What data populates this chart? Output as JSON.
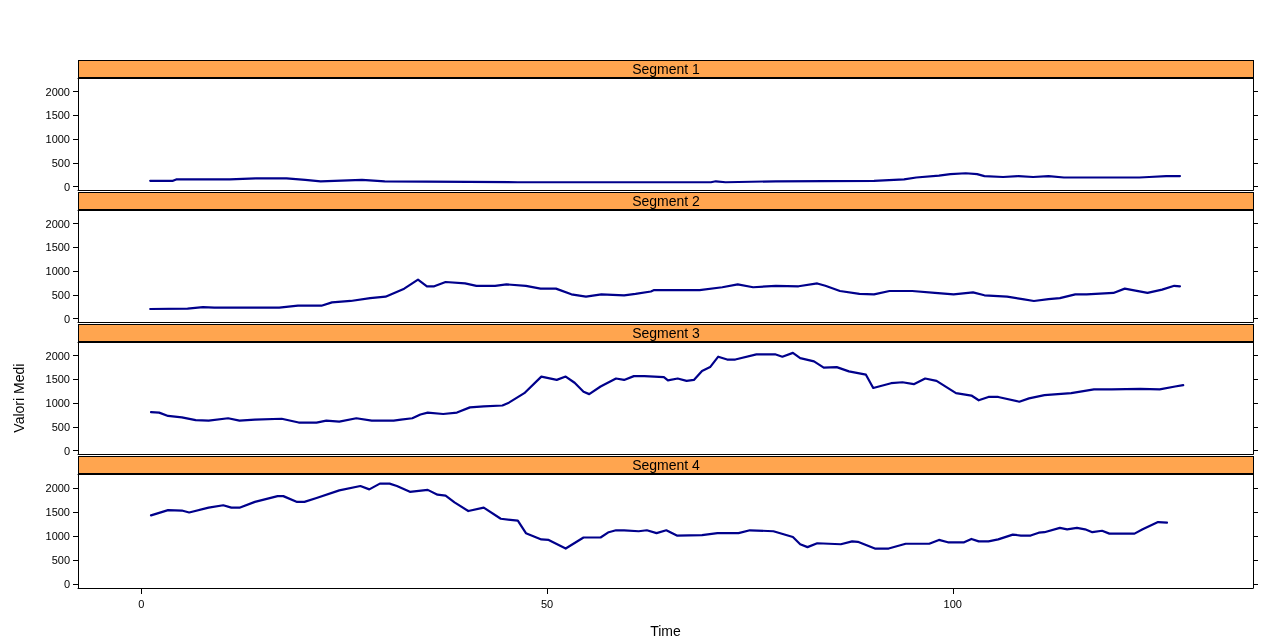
{
  "chart_data": [
    {
      "type": "line",
      "title": "Segment 1",
      "tick_labels": "y",
      "xlim": [
        -7.8,
        137
      ],
      "xticks": [
        0,
        50,
        100
      ],
      "ylim": [
        -80,
        2290
      ],
      "yticks": [
        0,
        500,
        1000,
        1500,
        2000
      ],
      "grid": false,
      "marker": "none",
      "line_style": "solid",
      "series": [
        {
          "color": "#00008b",
          "x": [
            1.1,
            3.9,
            4.3,
            8.1,
            10.9,
            14.1,
            17.9,
            20.2,
            22.1,
            27.2,
            30,
            46.4,
            70.2,
            70.8,
            72,
            78.2,
            90.3,
            94,
            95.5,
            98.3,
            99.7,
            101.6,
            103,
            103.9,
            106.2,
            108.1,
            109.9,
            111.8,
            113.7,
            123,
            124.2,
            126.3,
            128
          ],
          "values": [
            120,
            120,
            150,
            150,
            150,
            170,
            170,
            140,
            110,
            140,
            110,
            90,
            90,
            110,
            90,
            110,
            120,
            150,
            190,
            230,
            260,
            280,
            260,
            220,
            200,
            220,
            200,
            220,
            190,
            190,
            200,
            220,
            220
          ]
        }
      ]
    },
    {
      "type": "line",
      "title": "Segment 2",
      "tick_labels": "y",
      "xlim": [
        -7.8,
        137
      ],
      "xticks": [
        0,
        50,
        100
      ],
      "ylim": [
        -80,
        2290
      ],
      "yticks": [
        0,
        500,
        1000,
        1500,
        2000
      ],
      "grid": false,
      "marker": "none",
      "line_style": "solid",
      "series": [
        {
          "color": "#00008b",
          "x": [
            1.1,
            5.7,
            7.6,
            9,
            17,
            19.3,
            22.2,
            23.5,
            25.8,
            28.2,
            30.1,
            32.4,
            34.1,
            35.2,
            36.1,
            37.5,
            39.9,
            41.3,
            43.6,
            45,
            47.4,
            49.2,
            51.1,
            53,
            54.8,
            56.7,
            59.5,
            60.9,
            62.8,
            63.2,
            68.8,
            71.6,
            73.5,
            75.4,
            78.2,
            81,
            83.3,
            84.3,
            86.1,
            88.5,
            90.3,
            92.2,
            95,
            97.8,
            100.1,
            102.5,
            103.9,
            106.7,
            108.6,
            110,
            111.8,
            113.2,
            115.1,
            116.5,
            119.8,
            121.2,
            124,
            125.8,
            127.3,
            128
          ],
          "values": [
            200,
            210,
            240,
            230,
            230,
            270,
            270,
            340,
            370,
            430,
            460,
            630,
            820,
            680,
            680,
            770,
            740,
            690,
            690,
            720,
            690,
            630,
            630,
            510,
            460,
            510,
            490,
            520,
            570,
            600,
            600,
            660,
            720,
            660,
            690,
            680,
            740,
            690,
            580,
            520,
            510,
            580,
            580,
            540,
            510,
            550,
            490,
            460,
            410,
            370,
            410,
            430,
            510,
            510,
            540,
            630,
            540,
            610,
            690,
            680
          ]
        }
      ]
    },
    {
      "type": "line",
      "title": "Segment 3",
      "ylabel": "Valori Medi",
      "tick_labels": "y",
      "xlim": [
        -7.8,
        137
      ],
      "xticks": [
        0,
        50,
        100
      ],
      "ylim": [
        -80,
        2290
      ],
      "yticks": [
        0,
        500,
        1000,
        1500,
        2000
      ],
      "grid": false,
      "marker": "none",
      "line_style": "solid",
      "series": [
        {
          "color": "#00008b",
          "x": [
            1.2,
            2.2,
            3.3,
            5,
            6.7,
            8.3,
            10.7,
            12.1,
            14,
            17.3,
            19.4,
            21.6,
            22.8,
            24.4,
            26.5,
            28.4,
            31.1,
            32,
            33.4,
            34.4,
            35.3,
            37.2,
            38.9,
            40.5,
            42.2,
            44.5,
            45.3,
            47.2,
            49.3,
            51.2,
            52.3,
            53.4,
            54.5,
            55.2,
            56.6,
            58.5,
            59.5,
            60.7,
            62,
            64.4,
            64.9,
            66.1,
            67.2,
            68.1,
            69.1,
            70.1,
            71.1,
            72.2,
            73.2,
            75.8,
            78.1,
            79,
            80.3,
            81.2,
            82.9,
            84.1,
            85.7,
            87.2,
            89.3,
            90.2,
            92.4,
            93.8,
            95.2,
            96.6,
            98,
            100.4,
            102.3,
            103.2,
            104.4,
            105.6,
            108.2,
            109.4,
            111.3,
            114.6,
            117.4,
            119.6,
            123.1,
            125.5,
            127.4,
            128.4
          ],
          "values": [
            810,
            800,
            730,
            700,
            640,
            630,
            680,
            630,
            650,
            670,
            590,
            590,
            630,
            610,
            680,
            630,
            630,
            650,
            680,
            760,
            800,
            770,
            800,
            910,
            930,
            950,
            1010,
            1210,
            1560,
            1490,
            1560,
            1430,
            1240,
            1190,
            1350,
            1520,
            1490,
            1570,
            1570,
            1550,
            1480,
            1520,
            1470,
            1490,
            1680,
            1760,
            1980,
            1920,
            1920,
            2030,
            2030,
            1980,
            2060,
            1950,
            1880,
            1750,
            1760,
            1670,
            1600,
            1320,
            1420,
            1440,
            1400,
            1520,
            1470,
            1210,
            1160,
            1060,
            1130,
            1130,
            1030,
            1100,
            1170,
            1210,
            1290,
            1290,
            1300,
            1290,
            1350,
            1380
          ]
        }
      ]
    },
    {
      "type": "line",
      "title": "Segment 4",
      "xlabel": "Time",
      "xlim": [
        -7.8,
        137
      ],
      "xticks": [
        0,
        50,
        100
      ],
      "ylim": [
        -80,
        2290
      ],
      "yticks": [
        0,
        500,
        1000,
        1500,
        2000
      ],
      "grid": false,
      "marker": "none",
      "line_style": "solid",
      "series": [
        {
          "color": "#00008b",
          "x": [
            1.2,
            3.3,
            5,
            5.9,
            8.3,
            10.1,
            11.1,
            12.1,
            14,
            16.8,
            17.5,
            19.2,
            20.1,
            21.6,
            24.4,
            27,
            28.1,
            29.4,
            30.6,
            31.5,
            33.1,
            35.3,
            36.5,
            37.5,
            38.6,
            40.3,
            42.2,
            44.3,
            46.4,
            47.4,
            49.3,
            50.2,
            52.3,
            54.5,
            56.6,
            57.6,
            58.5,
            59.5,
            61.3,
            62.3,
            63.5,
            64.7,
            66,
            69.1,
            71,
            73.6,
            75,
            77.9,
            80.3,
            81.2,
            82.1,
            83.3,
            86.2,
            87.6,
            88.3,
            90.4,
            92.1,
            94.2,
            97.1,
            98.3,
            99.4,
            101.4,
            102.3,
            103.2,
            104.4,
            105.6,
            107.4,
            108.4,
            109.6,
            110.6,
            111.3,
            113.2,
            114.1,
            115.3,
            116.3,
            117.2,
            118.4,
            119.3,
            122.4,
            123.4,
            125.3,
            126.4
          ],
          "values": [
            1430,
            1540,
            1530,
            1490,
            1590,
            1640,
            1590,
            1590,
            1710,
            1830,
            1830,
            1710,
            1710,
            1790,
            1950,
            2040,
            1970,
            2090,
            2090,
            2040,
            1920,
            1960,
            1860,
            1840,
            1700,
            1520,
            1590,
            1360,
            1320,
            1060,
            930,
            920,
            740,
            970,
            970,
            1080,
            1120,
            1120,
            1100,
            1120,
            1060,
            1120,
            1010,
            1020,
            1060,
            1060,
            1120,
            1100,
            980,
            830,
            770,
            850,
            830,
            890,
            880,
            740,
            740,
            840,
            840,
            920,
            870,
            870,
            940,
            890,
            890,
            930,
            1030,
            1010,
            1010,
            1070,
            1080,
            1170,
            1140,
            1170,
            1140,
            1080,
            1110,
            1050,
            1050,
            1140,
            1290,
            1280
          ]
        }
      ]
    }
  ]
}
